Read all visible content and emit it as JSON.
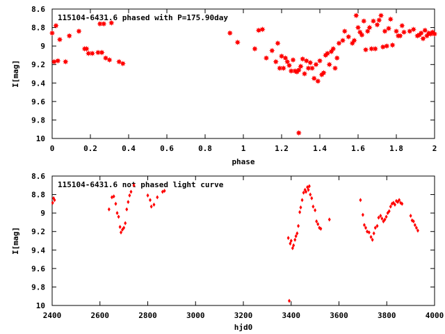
{
  "colors": {
    "marker": "#ff0000",
    "axes": "#000000",
    "background": "#ffffff"
  },
  "chart_data": [
    {
      "type": "scatter",
      "title": "115104-6431.6 phased with P=175.90day",
      "xlabel": "phase",
      "ylabel": "I[mag]",
      "xlim": [
        0,
        2
      ],
      "ylim": [
        10,
        8.6
      ],
      "y_inverted": true,
      "grid": false,
      "marker": "star",
      "x_ticks": [
        "0",
        "0.2",
        "0.4",
        "0.6",
        "0.8",
        "1",
        "1.2",
        "1.4",
        "1.6",
        "1.8",
        "2"
      ],
      "y_ticks": [
        "8.6",
        "8.8",
        "9",
        "9.2",
        "9.4",
        "9.6",
        "9.8",
        "10"
      ],
      "points": [
        [
          0.0,
          8.86
        ],
        [
          0.01,
          9.17
        ],
        [
          0.02,
          8.78
        ],
        [
          0.03,
          9.16
        ],
        [
          0.04,
          8.93
        ],
        [
          0.07,
          9.17
        ],
        [
          0.09,
          8.89
        ],
        [
          0.14,
          8.84
        ],
        [
          0.17,
          9.03
        ],
        [
          0.18,
          9.03
        ],
        [
          0.19,
          9.08
        ],
        [
          0.21,
          9.08
        ],
        [
          0.24,
          9.07
        ],
        [
          0.25,
          8.76
        ],
        [
          0.26,
          9.07
        ],
        [
          0.27,
          8.76
        ],
        [
          0.28,
          9.13
        ],
        [
          0.3,
          9.15
        ],
        [
          0.31,
          8.75
        ],
        [
          0.35,
          9.17
        ],
        [
          0.37,
          9.19
        ],
        [
          0.93,
          8.86
        ],
        [
          0.97,
          8.96
        ],
        [
          1.06,
          9.03
        ],
        [
          1.08,
          8.83
        ],
        [
          1.1,
          8.82
        ],
        [
          1.12,
          9.13
        ],
        [
          1.15,
          9.05
        ],
        [
          1.17,
          9.17
        ],
        [
          1.18,
          8.97
        ],
        [
          1.19,
          9.24
        ],
        [
          1.2,
          9.11
        ],
        [
          1.21,
          9.24
        ],
        [
          1.22,
          9.13
        ],
        [
          1.23,
          9.17
        ],
        [
          1.24,
          9.21
        ],
        [
          1.25,
          9.27
        ],
        [
          1.26,
          9.15
        ],
        [
          1.27,
          9.27
        ],
        [
          1.28,
          9.28
        ],
        [
          1.29,
          9.26
        ],
        [
          1.29,
          9.94
        ],
        [
          1.3,
          9.22
        ],
        [
          1.31,
          9.14
        ],
        [
          1.32,
          9.3
        ],
        [
          1.33,
          9.16
        ],
        [
          1.34,
          9.24
        ],
        [
          1.35,
          9.18
        ],
        [
          1.36,
          9.24
        ],
        [
          1.37,
          9.35
        ],
        [
          1.38,
          9.2
        ],
        [
          1.39,
          9.38
        ],
        [
          1.4,
          9.16
        ],
        [
          1.41,
          9.31
        ],
        [
          1.42,
          9.29
        ],
        [
          1.43,
          9.1
        ],
        [
          1.44,
          9.08
        ],
        [
          1.45,
          9.2
        ],
        [
          1.46,
          9.06
        ],
        [
          1.47,
          9.03
        ],
        [
          1.48,
          9.24
        ],
        [
          1.49,
          9.13
        ],
        [
          1.5,
          8.97
        ],
        [
          1.52,
          8.94
        ],
        [
          1.53,
          8.84
        ],
        [
          1.55,
          8.9
        ],
        [
          1.57,
          8.97
        ],
        [
          1.58,
          8.94
        ],
        [
          1.59,
          8.67
        ],
        [
          1.6,
          8.8
        ],
        [
          1.61,
          8.85
        ],
        [
          1.62,
          8.88
        ],
        [
          1.63,
          8.73
        ],
        [
          1.64,
          9.04
        ],
        [
          1.65,
          8.84
        ],
        [
          1.66,
          8.8
        ],
        [
          1.67,
          9.03
        ],
        [
          1.68,
          8.73
        ],
        [
          1.69,
          9.03
        ],
        [
          1.7,
          8.77
        ],
        [
          1.71,
          8.72
        ],
        [
          1.72,
          8.67
        ],
        [
          1.73,
          9.01
        ],
        [
          1.74,
          8.84
        ],
        [
          1.75,
          9.0
        ],
        [
          1.76,
          8.81
        ],
        [
          1.77,
          8.71
        ],
        [
          1.78,
          8.99
        ],
        [
          1.8,
          8.84
        ],
        [
          1.81,
          8.89
        ],
        [
          1.82,
          8.89
        ],
        [
          1.83,
          8.78
        ],
        [
          1.84,
          8.85
        ],
        [
          1.87,
          8.84
        ],
        [
          1.89,
          8.82
        ],
        [
          1.91,
          8.89
        ],
        [
          1.92,
          8.88
        ],
        [
          1.93,
          8.86
        ],
        [
          1.94,
          8.92
        ],
        [
          1.95,
          8.83
        ],
        [
          1.96,
          8.89
        ],
        [
          1.97,
          8.86
        ],
        [
          1.98,
          8.87
        ],
        [
          1.99,
          8.85
        ],
        [
          2.0,
          8.87
        ]
      ]
    },
    {
      "type": "scatter",
      "title": "115104-6431.6 not phased light curve",
      "xlabel": "hjd0",
      "ylabel": "I[mag]",
      "xlim": [
        2400,
        4000
      ],
      "ylim": [
        10,
        8.6
      ],
      "y_inverted": true,
      "grid": false,
      "marker": "diamond",
      "x_ticks": [
        "2400",
        "2600",
        "2800",
        "3000",
        "3200",
        "3400",
        "3600",
        "3800",
        "4000"
      ],
      "y_ticks": [
        "8.6",
        "8.8",
        "9",
        "9.2",
        "9.4",
        "9.6",
        "9.8",
        "10"
      ],
      "points": [
        [
          2402,
          8.89
        ],
        [
          2406,
          8.84
        ],
        [
          2410,
          8.86
        ],
        [
          2638,
          8.96
        ],
        [
          2650,
          8.83
        ],
        [
          2658,
          8.82
        ],
        [
          2666,
          8.9
        ],
        [
          2672,
          9.0
        ],
        [
          2678,
          9.04
        ],
        [
          2684,
          9.15
        ],
        [
          2688,
          9.21
        ],
        [
          2694,
          9.18
        ],
        [
          2700,
          9.16
        ],
        [
          2706,
          9.11
        ],
        [
          2712,
          8.96
        ],
        [
          2718,
          8.88
        ],
        [
          2724,
          8.81
        ],
        [
          2730,
          8.77
        ],
        [
          2742,
          8.7
        ],
        [
          2800,
          8.81
        ],
        [
          2810,
          8.86
        ],
        [
          2815,
          8.93
        ],
        [
          2826,
          8.91
        ],
        [
          2840,
          8.83
        ],
        [
          2862,
          8.77
        ],
        [
          2870,
          8.76
        ],
        [
          3388,
          9.27
        ],
        [
          3392,
          9.95
        ],
        [
          3396,
          9.33
        ],
        [
          3400,
          9.3
        ],
        [
          3406,
          9.38
        ],
        [
          3410,
          9.35
        ],
        [
          3416,
          9.29
        ],
        [
          3420,
          9.25
        ],
        [
          3425,
          9.22
        ],
        [
          3430,
          9.14
        ],
        [
          3436,
          8.99
        ],
        [
          3440,
          8.94
        ],
        [
          3446,
          8.86
        ],
        [
          3452,
          8.78
        ],
        [
          3458,
          8.75
        ],
        [
          3462,
          8.77
        ],
        [
          3468,
          8.72
        ],
        [
          3472,
          8.75
        ],
        [
          3476,
          8.71
        ],
        [
          3480,
          8.8
        ],
        [
          3486,
          8.84
        ],
        [
          3492,
          8.93
        ],
        [
          3500,
          8.97
        ],
        [
          3506,
          9.09
        ],
        [
          3512,
          9.12
        ],
        [
          3518,
          9.16
        ],
        [
          3524,
          9.17
        ],
        [
          3560,
          9.07
        ],
        [
          3690,
          8.86
        ],
        [
          3700,
          9.02
        ],
        [
          3706,
          9.13
        ],
        [
          3712,
          9.16
        ],
        [
          3718,
          9.2
        ],
        [
          3726,
          9.21
        ],
        [
          3734,
          9.26
        ],
        [
          3740,
          9.29
        ],
        [
          3746,
          9.22
        ],
        [
          3752,
          9.16
        ],
        [
          3760,
          9.14
        ],
        [
          3766,
          9.05
        ],
        [
          3774,
          9.03
        ],
        [
          3780,
          9.06
        ],
        [
          3786,
          9.09
        ],
        [
          3792,
          9.07
        ],
        [
          3798,
          9.04
        ],
        [
          3804,
          9.0
        ],
        [
          3810,
          8.98
        ],
        [
          3816,
          8.93
        ],
        [
          3822,
          8.9
        ],
        [
          3828,
          8.89
        ],
        [
          3834,
          8.91
        ],
        [
          3840,
          8.87
        ],
        [
          3846,
          8.88
        ],
        [
          3852,
          8.86
        ],
        [
          3858,
          8.89
        ],
        [
          3864,
          8.9
        ],
        [
          3900,
          9.03
        ],
        [
          3906,
          9.08
        ],
        [
          3912,
          9.09
        ],
        [
          3918,
          9.13
        ],
        [
          3924,
          9.16
        ],
        [
          3930,
          9.19
        ]
      ]
    }
  ]
}
